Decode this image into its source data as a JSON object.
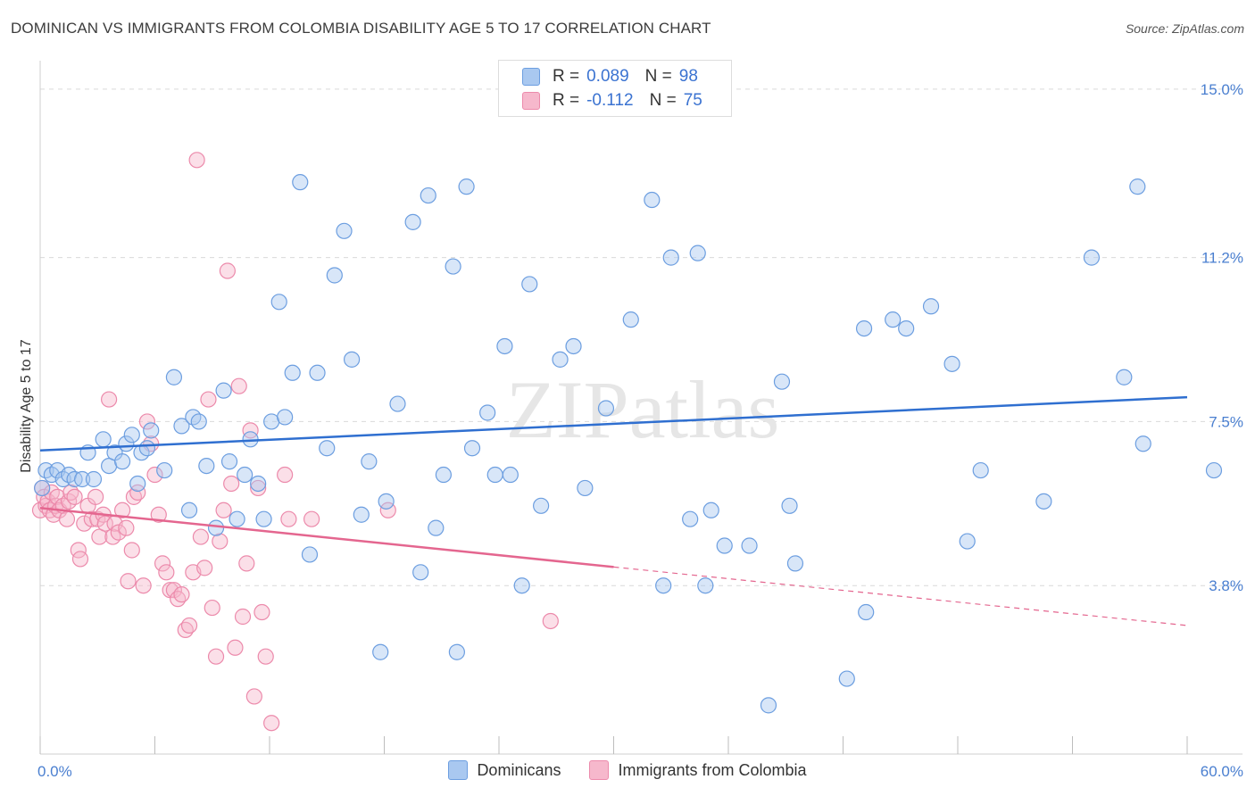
{
  "title": "DOMINICAN VS IMMIGRANTS FROM COLOMBIA DISABILITY AGE 5 TO 17 CORRELATION CHART",
  "source": "Source: ZipAtlas.com",
  "watermark": "ZIPatlas",
  "legend": {
    "rows": [
      {
        "r_label": "R =",
        "r_value": "0.089",
        "n_label": "N =",
        "n_value": "98"
      },
      {
        "r_label": "R =",
        "r_value": "-0.112",
        "n_label": "N =",
        "n_value": "75"
      }
    ]
  },
  "bottom_legend": [
    "Dominicans",
    "Immigrants from Colombia"
  ],
  "colors": {
    "blue_fill": "#a9c8f0",
    "blue_stroke": "#6c9ee0",
    "blue_line": "#2f6fd0",
    "pink_fill": "#f6b8cc",
    "pink_stroke": "#ec8aab",
    "pink_line": "#e4668f",
    "grid": "#d9d9d9",
    "tick_text": "#4a7fd0"
  },
  "chart_data": {
    "type": "scatter",
    "title": "DOMINICAN VS IMMIGRANTS FROM COLOMBIA DISABILITY AGE 5 TO 17 CORRELATION CHART",
    "xlabel": "",
    "ylabel": "Disability Age 5 to 17",
    "xlim": [
      0,
      60
    ],
    "ylim": [
      0,
      15.5
    ],
    "x_tick_labels": [
      "0.0%",
      "60.0%"
    ],
    "y_ticks": [
      3.8,
      7.5,
      11.2,
      15.0
    ],
    "y_tick_labels": [
      "3.8%",
      "7.5%",
      "11.2%",
      "15.0%"
    ],
    "grid": true,
    "series": [
      {
        "name": "Dominicans",
        "r": 0.089,
        "n": 98,
        "trend": {
          "x": [
            0,
            60
          ],
          "y": [
            6.85,
            8.05
          ]
        },
        "points": [
          [
            0.1,
            6.0
          ],
          [
            0.3,
            6.4
          ],
          [
            0.6,
            6.3
          ],
          [
            0.9,
            6.4
          ],
          [
            1.2,
            6.2
          ],
          [
            1.5,
            6.3
          ],
          [
            1.8,
            6.2
          ],
          [
            2.2,
            6.2
          ],
          [
            2.5,
            6.8
          ],
          [
            2.8,
            6.2
          ],
          [
            3.3,
            7.1
          ],
          [
            3.6,
            6.5
          ],
          [
            3.9,
            6.8
          ],
          [
            4.3,
            6.6
          ],
          [
            4.5,
            7.0
          ],
          [
            4.8,
            7.2
          ],
          [
            5.1,
            6.1
          ],
          [
            5.3,
            6.8
          ],
          [
            5.6,
            6.9
          ],
          [
            5.8,
            7.3
          ],
          [
            6.5,
            6.4
          ],
          [
            7.0,
            8.5
          ],
          [
            7.4,
            7.4
          ],
          [
            7.8,
            5.5
          ],
          [
            8.0,
            7.6
          ],
          [
            8.3,
            7.5
          ],
          [
            8.7,
            6.5
          ],
          [
            9.2,
            5.1
          ],
          [
            9.6,
            8.2
          ],
          [
            9.9,
            6.6
          ],
          [
            10.3,
            5.3
          ],
          [
            10.7,
            6.3
          ],
          [
            11.0,
            7.1
          ],
          [
            11.4,
            6.1
          ],
          [
            11.7,
            5.3
          ],
          [
            12.1,
            7.5
          ],
          [
            12.5,
            10.2
          ],
          [
            12.8,
            7.6
          ],
          [
            13.2,
            8.6
          ],
          [
            13.6,
            12.9
          ],
          [
            14.1,
            4.5
          ],
          [
            14.5,
            8.6
          ],
          [
            15.0,
            6.9
          ],
          [
            15.4,
            10.8
          ],
          [
            15.9,
            11.8
          ],
          [
            16.3,
            8.9
          ],
          [
            16.8,
            5.4
          ],
          [
            17.2,
            6.6
          ],
          [
            17.8,
            2.3
          ],
          [
            18.1,
            5.7
          ],
          [
            18.7,
            7.9
          ],
          [
            19.5,
            12.0
          ],
          [
            19.9,
            4.1
          ],
          [
            20.3,
            12.6
          ],
          [
            20.7,
            5.1
          ],
          [
            21.1,
            6.3
          ],
          [
            21.6,
            11.0
          ],
          [
            21.8,
            2.3
          ],
          [
            22.3,
            12.8
          ],
          [
            22.6,
            6.9
          ],
          [
            23.4,
            7.7
          ],
          [
            23.8,
            6.3
          ],
          [
            24.3,
            9.2
          ],
          [
            24.6,
            6.3
          ],
          [
            25.2,
            3.8
          ],
          [
            25.6,
            10.6
          ],
          [
            26.2,
            5.6
          ],
          [
            27.2,
            8.9
          ],
          [
            27.9,
            9.2
          ],
          [
            28.5,
            6.0
          ],
          [
            29.6,
            7.8
          ],
          [
            30.9,
            9.8
          ],
          [
            32.0,
            12.5
          ],
          [
            32.6,
            3.8
          ],
          [
            33.0,
            11.2
          ],
          [
            34.0,
            5.3
          ],
          [
            34.4,
            11.3
          ],
          [
            34.8,
            3.8
          ],
          [
            35.1,
            5.5
          ],
          [
            35.8,
            4.7
          ],
          [
            37.1,
            4.7
          ],
          [
            38.1,
            1.1
          ],
          [
            38.8,
            8.4
          ],
          [
            39.2,
            5.6
          ],
          [
            39.5,
            4.3
          ],
          [
            42.2,
            1.7
          ],
          [
            43.1,
            9.6
          ],
          [
            43.2,
            3.2
          ],
          [
            44.6,
            9.8
          ],
          [
            45.3,
            9.6
          ],
          [
            46.6,
            10.1
          ],
          [
            47.7,
            8.8
          ],
          [
            48.5,
            4.8
          ],
          [
            49.2,
            6.4
          ],
          [
            52.5,
            5.7
          ],
          [
            55.0,
            11.2
          ],
          [
            56.7,
            8.5
          ],
          [
            57.4,
            12.8
          ],
          [
            57.7,
            7.0
          ],
          [
            61.4,
            6.4
          ]
        ]
      },
      {
        "name": "Immigrants from Colombia",
        "r": -0.112,
        "n": 75,
        "trend": {
          "x": [
            0,
            30
          ],
          "y": [
            5.55,
            4.22
          ]
        },
        "trend_extended": {
          "x": [
            30,
            60
          ],
          "y": [
            4.22,
            2.9
          ]
        },
        "points": [
          [
            0.0,
            5.5
          ],
          [
            0.1,
            6.0
          ],
          [
            0.2,
            5.8
          ],
          [
            0.3,
            5.6
          ],
          [
            0.4,
            5.7
          ],
          [
            0.5,
            5.5
          ],
          [
            0.6,
            5.9
          ],
          [
            0.7,
            5.4
          ],
          [
            0.8,
            5.6
          ],
          [
            0.9,
            5.8
          ],
          [
            1.0,
            5.5
          ],
          [
            1.2,
            5.6
          ],
          [
            1.4,
            5.3
          ],
          [
            1.5,
            5.7
          ],
          [
            1.6,
            5.9
          ],
          [
            1.8,
            5.8
          ],
          [
            2.0,
            4.6
          ],
          [
            2.1,
            4.4
          ],
          [
            2.3,
            5.2
          ],
          [
            2.5,
            5.6
          ],
          [
            2.7,
            5.3
          ],
          [
            2.9,
            5.8
          ],
          [
            3.0,
            5.3
          ],
          [
            3.1,
            4.9
          ],
          [
            3.3,
            5.4
          ],
          [
            3.4,
            5.2
          ],
          [
            3.6,
            8.0
          ],
          [
            3.8,
            4.9
          ],
          [
            3.9,
            5.2
          ],
          [
            4.1,
            5.0
          ],
          [
            4.3,
            5.5
          ],
          [
            4.5,
            5.1
          ],
          [
            4.6,
            3.9
          ],
          [
            4.8,
            4.6
          ],
          [
            4.9,
            5.8
          ],
          [
            5.1,
            5.9
          ],
          [
            5.4,
            3.8
          ],
          [
            5.6,
            7.5
          ],
          [
            5.8,
            7.0
          ],
          [
            6.0,
            6.3
          ],
          [
            6.2,
            5.4
          ],
          [
            6.4,
            4.3
          ],
          [
            6.6,
            4.1
          ],
          [
            6.8,
            3.7
          ],
          [
            7.0,
            3.7
          ],
          [
            7.2,
            3.5
          ],
          [
            7.4,
            3.6
          ],
          [
            7.6,
            2.8
          ],
          [
            7.8,
            2.9
          ],
          [
            8.0,
            4.1
          ],
          [
            8.2,
            13.4
          ],
          [
            8.4,
            4.9
          ],
          [
            8.6,
            4.2
          ],
          [
            8.8,
            8.0
          ],
          [
            9.0,
            3.3
          ],
          [
            9.2,
            2.2
          ],
          [
            9.4,
            4.8
          ],
          [
            9.6,
            5.5
          ],
          [
            9.8,
            10.9
          ],
          [
            10.0,
            6.1
          ],
          [
            10.2,
            2.4
          ],
          [
            10.4,
            8.3
          ],
          [
            10.6,
            3.1
          ],
          [
            10.8,
            4.3
          ],
          [
            11.0,
            7.3
          ],
          [
            11.2,
            1.3
          ],
          [
            11.4,
            6.0
          ],
          [
            11.6,
            3.2
          ],
          [
            11.8,
            2.2
          ],
          [
            12.1,
            0.7
          ],
          [
            12.8,
            6.3
          ],
          [
            13.0,
            5.3
          ],
          [
            14.2,
            5.3
          ],
          [
            18.2,
            5.5
          ],
          [
            26.7,
            3.0
          ]
        ]
      }
    ]
  }
}
